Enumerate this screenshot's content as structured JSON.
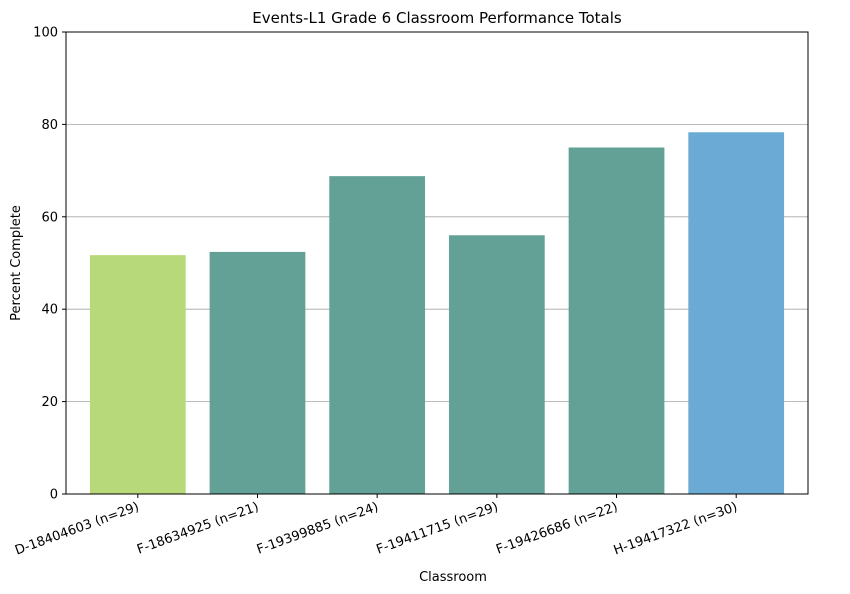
{
  "chart_data": {
    "type": "bar",
    "title": "Events-L1 Grade 6 Classroom Performance Totals",
    "xlabel": "Classroom",
    "ylabel": "Percent Complete",
    "ylim": [
      0,
      100
    ],
    "yticks": [
      0,
      20,
      40,
      60,
      80,
      100
    ],
    "grid": "y-axis, light gray",
    "legend": "none",
    "categories": [
      "D-18404603 (n=29)",
      "F-18634925 (n=21)",
      "F-19399885 (n=24)",
      "F-19411715 (n=29)",
      "F-19426686 (n=22)",
      "H-19417322 (n=30)"
    ],
    "values": [
      51.7,
      52.4,
      68.8,
      56.0,
      75.0,
      78.3
    ],
    "colors": [
      "#b8d97a",
      "#63a096",
      "#63a096",
      "#63a096",
      "#63a096",
      "#6baad4"
    ]
  }
}
